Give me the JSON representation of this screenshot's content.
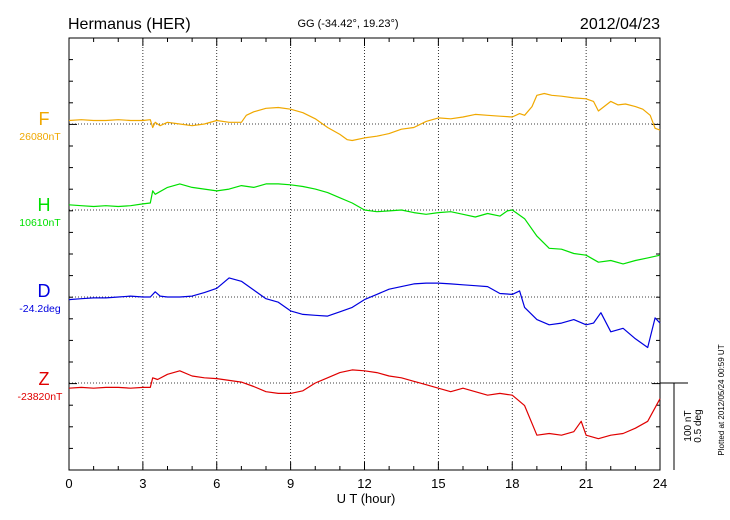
{
  "header": {
    "station": "Hermanus (HER)",
    "coords": "GG (-34.42°,  19.23°)",
    "date": "2012/04/23"
  },
  "footer_note": "Plotted at 2012/05/24 00:59 UT",
  "chart_data": {
    "type": "line",
    "xlabel": "U T (hour)",
    "xlim": [
      0,
      24
    ],
    "xticks": [
      "0",
      "3",
      "6",
      "9",
      "12",
      "15",
      "18",
      "21",
      "24"
    ],
    "grid": true,
    "scale_bar": {
      "label1": "100 nT",
      "label2": "0.5 deg"
    },
    "series": [
      {
        "name": "F",
        "baseline_label": "26080nT",
        "color": "#f0a800",
        "baseline_nT": 0,
        "points": [
          [
            0,
            4
          ],
          [
            0.5,
            5
          ],
          [
            1,
            4
          ],
          [
            1.5,
            4
          ],
          [
            2,
            5
          ],
          [
            2.5,
            4
          ],
          [
            3,
            4
          ],
          [
            3.3,
            5
          ],
          [
            3.4,
            -4
          ],
          [
            3.5,
            2
          ],
          [
            3.7,
            -2
          ],
          [
            4,
            2
          ],
          [
            4.5,
            0
          ],
          [
            5,
            -2
          ],
          [
            5.5,
            0
          ],
          [
            6,
            4
          ],
          [
            6.5,
            2
          ],
          [
            7,
            2
          ],
          [
            7.2,
            10
          ],
          [
            7.5,
            14
          ],
          [
            8,
            18
          ],
          [
            8.5,
            19
          ],
          [
            9,
            17
          ],
          [
            9.5,
            13
          ],
          [
            10,
            6
          ],
          [
            10.5,
            -4
          ],
          [
            11,
            -12
          ],
          [
            11.3,
            -18
          ],
          [
            11.5,
            -19
          ],
          [
            12,
            -16
          ],
          [
            12.5,
            -14
          ],
          [
            13,
            -11
          ],
          [
            13.5,
            -6
          ],
          [
            14,
            -4
          ],
          [
            14.5,
            3
          ],
          [
            15,
            7
          ],
          [
            15.5,
            6
          ],
          [
            16,
            8
          ],
          [
            16.5,
            11
          ],
          [
            17,
            10
          ],
          [
            17.5,
            9
          ],
          [
            18,
            8
          ],
          [
            18.3,
            12
          ],
          [
            18.5,
            10
          ],
          [
            18.8,
            20
          ],
          [
            19,
            33
          ],
          [
            19.3,
            35
          ],
          [
            19.6,
            33
          ],
          [
            20,
            32
          ],
          [
            20.5,
            30
          ],
          [
            21,
            29
          ],
          [
            21.3,
            26
          ],
          [
            21.5,
            15
          ],
          [
            22,
            26
          ],
          [
            22.3,
            22
          ],
          [
            22.6,
            23
          ],
          [
            23,
            20
          ],
          [
            23.3,
            17
          ],
          [
            23.6,
            10
          ],
          [
            23.8,
            -5
          ],
          [
            24,
            -7
          ]
        ]
      },
      {
        "name": "H",
        "baseline_label": "10610nT",
        "color": "#00e000",
        "baseline_nT": 0,
        "points": [
          [
            0,
            6
          ],
          [
            0.5,
            5
          ],
          [
            1,
            4
          ],
          [
            1.5,
            5
          ],
          [
            2,
            4
          ],
          [
            2.5,
            5
          ],
          [
            3,
            7
          ],
          [
            3.3,
            8
          ],
          [
            3.4,
            22
          ],
          [
            3.5,
            18
          ],
          [
            4,
            26
          ],
          [
            4.5,
            30
          ],
          [
            5,
            26
          ],
          [
            5.5,
            24
          ],
          [
            6,
            22
          ],
          [
            6.5,
            24
          ],
          [
            7,
            28
          ],
          [
            7.5,
            26
          ],
          [
            8,
            30
          ],
          [
            8.5,
            30
          ],
          [
            9,
            29
          ],
          [
            9.5,
            27
          ],
          [
            10,
            24
          ],
          [
            10.5,
            20
          ],
          [
            11,
            14
          ],
          [
            11.5,
            8
          ],
          [
            12,
            0
          ],
          [
            12.5,
            -2
          ],
          [
            13,
            -1
          ],
          [
            13.5,
            0
          ],
          [
            14,
            -3
          ],
          [
            14.5,
            -5
          ],
          [
            15,
            -3
          ],
          [
            15.5,
            -2
          ],
          [
            16,
            -5
          ],
          [
            16.5,
            -8
          ],
          [
            17,
            -4
          ],
          [
            17.5,
            -7
          ],
          [
            17.8,
            -1
          ],
          [
            18,
            0
          ],
          [
            18.5,
            -10
          ],
          [
            19,
            -30
          ],
          [
            19.5,
            -44
          ],
          [
            20,
            -45
          ],
          [
            20.5,
            -50
          ],
          [
            21,
            -52
          ],
          [
            21.5,
            -60
          ],
          [
            22,
            -58
          ],
          [
            22.5,
            -62
          ],
          [
            23,
            -58
          ],
          [
            23.5,
            -55
          ],
          [
            24,
            -52
          ]
        ]
      },
      {
        "name": "D",
        "baseline_label": "-24.2deg",
        "color": "#0000e0",
        "baseline_nT": 0,
        "points": [
          [
            0,
            -3
          ],
          [
            0.5,
            -2
          ],
          [
            1,
            -1
          ],
          [
            1.5,
            -1
          ],
          [
            2,
            0
          ],
          [
            2.5,
            1
          ],
          [
            3,
            0
          ],
          [
            3.3,
            0
          ],
          [
            3.5,
            6
          ],
          [
            3.7,
            1
          ],
          [
            4,
            0
          ],
          [
            4.5,
            0
          ],
          [
            5,
            1
          ],
          [
            5.5,
            5
          ],
          [
            6,
            10
          ],
          [
            6.5,
            22
          ],
          [
            7,
            18
          ],
          [
            7.5,
            8
          ],
          [
            8,
            -2
          ],
          [
            8.5,
            -6
          ],
          [
            9,
            -16
          ],
          [
            9.5,
            -20
          ],
          [
            10,
            -21
          ],
          [
            10.5,
            -22
          ],
          [
            11,
            -17
          ],
          [
            11.5,
            -12
          ],
          [
            12,
            -3
          ],
          [
            12.5,
            3
          ],
          [
            13,
            9
          ],
          [
            13.5,
            12
          ],
          [
            14,
            15
          ],
          [
            14.5,
            16
          ],
          [
            15,
            16
          ],
          [
            15.5,
            15
          ],
          [
            16,
            14
          ],
          [
            16.5,
            13
          ],
          [
            17,
            12
          ],
          [
            17.5,
            4
          ],
          [
            18,
            3
          ],
          [
            18.3,
            7
          ],
          [
            18.5,
            -12
          ],
          [
            19,
            -26
          ],
          [
            19.5,
            -32
          ],
          [
            20,
            -30
          ],
          [
            20.5,
            -26
          ],
          [
            21,
            -32
          ],
          [
            21.3,
            -30
          ],
          [
            21.6,
            -18
          ],
          [
            22,
            -40
          ],
          [
            22.5,
            -36
          ],
          [
            23,
            -48
          ],
          [
            23.5,
            -58
          ],
          [
            23.8,
            -24
          ],
          [
            24,
            -30
          ]
        ]
      },
      {
        "name": "Z",
        "baseline_label": "-23820nT",
        "color": "#e00000",
        "baseline_nT": 0,
        "points": [
          [
            0,
            -6
          ],
          [
            0.5,
            -5
          ],
          [
            1,
            -6
          ],
          [
            1.5,
            -5
          ],
          [
            2,
            -5
          ],
          [
            2.5,
            -6
          ],
          [
            3,
            -5
          ],
          [
            3.3,
            -5
          ],
          [
            3.4,
            6
          ],
          [
            3.6,
            4
          ],
          [
            4,
            10
          ],
          [
            4.5,
            14
          ],
          [
            5,
            8
          ],
          [
            5.5,
            6
          ],
          [
            6,
            5
          ],
          [
            6.5,
            3
          ],
          [
            7,
            1
          ],
          [
            7.5,
            -4
          ],
          [
            8,
            -10
          ],
          [
            8.5,
            -12
          ],
          [
            9,
            -12
          ],
          [
            9.5,
            -9
          ],
          [
            10,
            0
          ],
          [
            10.5,
            6
          ],
          [
            11,
            12
          ],
          [
            11.5,
            15
          ],
          [
            12,
            14
          ],
          [
            12.5,
            12
          ],
          [
            13,
            8
          ],
          [
            13.5,
            6
          ],
          [
            14,
            2
          ],
          [
            14.5,
            -2
          ],
          [
            15,
            -6
          ],
          [
            15.5,
            -10
          ],
          [
            16,
            -6
          ],
          [
            16.5,
            -10
          ],
          [
            17,
            -14
          ],
          [
            17.5,
            -12
          ],
          [
            18,
            -14
          ],
          [
            18.5,
            -26
          ],
          [
            19,
            -60
          ],
          [
            19.5,
            -58
          ],
          [
            20,
            -60
          ],
          [
            20.5,
            -56
          ],
          [
            20.8,
            -44
          ],
          [
            21,
            -60
          ],
          [
            21.5,
            -64
          ],
          [
            22,
            -60
          ],
          [
            22.5,
            -58
          ],
          [
            23,
            -52
          ],
          [
            23.5,
            -44
          ],
          [
            24,
            -18
          ]
        ]
      }
    ]
  }
}
